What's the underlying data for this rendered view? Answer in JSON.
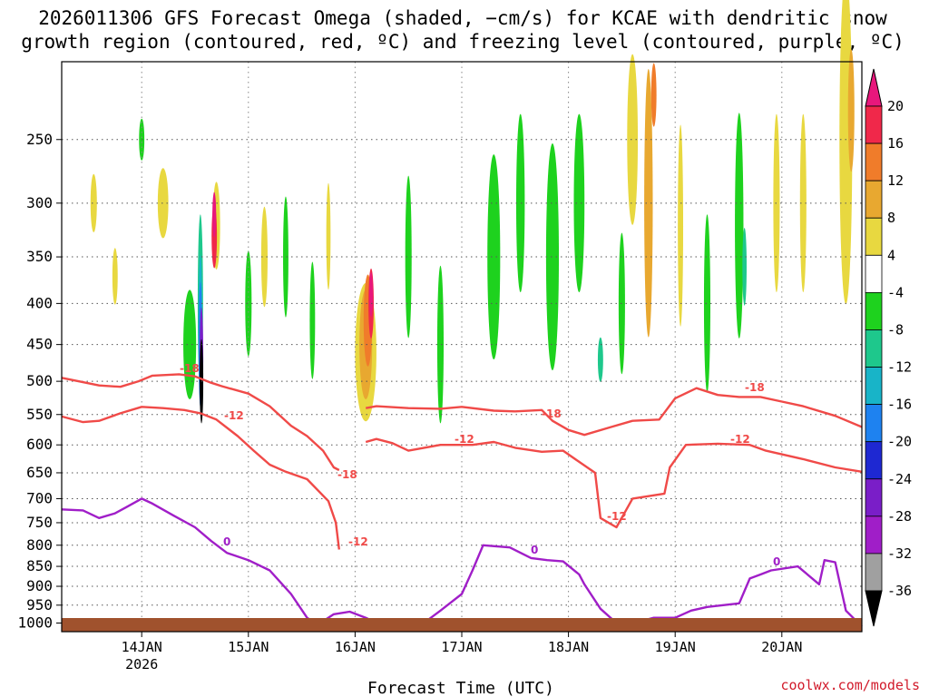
{
  "chart_data": {
    "type": "heatmap",
    "title_lines": [
      "2026011306 GFS Forecast Omega (shaded, −cm/s) for KCAE with dendritic snow",
      "growth region (contoured, red, ºC) and freezing level (contoured, purple, ºC)"
    ],
    "xlabel": "Forecast Time (UTC)",
    "credit": "coolwx.com/models",
    "x_ticks": [
      {
        "label": "14JAN",
        "sub": "2026",
        "day": 14
      },
      {
        "label": "15JAN",
        "sub": "",
        "day": 15
      },
      {
        "label": "16JAN",
        "sub": "",
        "day": 16
      },
      {
        "label": "17JAN",
        "sub": "",
        "day": 17
      },
      {
        "label": "18JAN",
        "sub": "",
        "day": 18
      },
      {
        "label": "19JAN",
        "sub": "",
        "day": 19
      },
      {
        "label": "20JAN",
        "sub": "",
        "day": 20
      }
    ],
    "x_range_days": [
      13.25,
      20.75
    ],
    "y_axis": "pressure (hPa)",
    "y_range_hpa": [
      200,
      1025
    ],
    "y_ticks": [
      250,
      300,
      350,
      400,
      450,
      500,
      550,
      600,
      650,
      700,
      750,
      800,
      850,
      900,
      950,
      1000
    ],
    "colorbar": {
      "ticks": [
        "20",
        "16",
        "12",
        "8",
        "4",
        "-4",
        "-8",
        "-12",
        "-16",
        "-20",
        "-24",
        "-28",
        "-32",
        "-36"
      ],
      "bins": [
        {
          "range": "> 20",
          "color": "#e8177c"
        },
        {
          "range": "16 to 20",
          "color": "#f0284a"
        },
        {
          "range": "12 to 16",
          "color": "#f07c2a"
        },
        {
          "range": "8 to 12",
          "color": "#e8a830"
        },
        {
          "range": "4 to 8",
          "color": "#e8d840"
        },
        {
          "range": "-4 to 4",
          "color": "#ffffff"
        },
        {
          "range": "-8 to -4",
          "color": "#1ed21e"
        },
        {
          "range": "-12 to -8",
          "color": "#1ec88c"
        },
        {
          "range": "-16 to -12",
          "color": "#18b4c8"
        },
        {
          "range": "-20 to -16",
          "color": "#1e82f0"
        },
        {
          "range": "-24 to -20",
          "color": "#1e28d2"
        },
        {
          "range": "-28 to -24",
          "color": "#7a1ec8"
        },
        {
          "range": "-32 to -28",
          "color": "#a01ec8"
        },
        {
          "range": "-36 to -32",
          "color": "#a0a0a0"
        },
        {
          "range": "< -36",
          "color": "#000000"
        }
      ]
    },
    "ground_color": "#a0522d",
    "dgz_color": "#f04a48",
    "freezing_color": "#a01ec8",
    "contour_labels": {
      "minus18": "-18",
      "minus12": "-12",
      "zero": "0"
    },
    "contours": {
      "minus18_top": [
        [
          13.25,
          495
        ],
        [
          13.6,
          506
        ],
        [
          13.8,
          508
        ],
        [
          13.97,
          500
        ],
        [
          14.1,
          492
        ],
        [
          14.35,
          490
        ],
        [
          14.5,
          493
        ],
        [
          14.65,
          502
        ],
        [
          14.75,
          507
        ],
        [
          15.0,
          518
        ],
        [
          15.2,
          537
        ],
        [
          15.4,
          568
        ],
        [
          15.55,
          585
        ],
        [
          15.7,
          610
        ],
        [
          15.8,
          640
        ],
        [
          15.85,
          645
        ]
      ],
      "minus12_top": [
        [
          13.25,
          553
        ],
        [
          13.45,
          562
        ],
        [
          13.6,
          560
        ],
        [
          13.8,
          548
        ],
        [
          14.0,
          538
        ],
        [
          14.2,
          540
        ],
        [
          14.4,
          543
        ],
        [
          14.55,
          548
        ],
        [
          14.7,
          558
        ],
        [
          14.9,
          585
        ],
        [
          15.05,
          610
        ],
        [
          15.2,
          635
        ],
        [
          15.35,
          648
        ],
        [
          15.55,
          662
        ],
        [
          15.75,
          705
        ],
        [
          15.82,
          750
        ],
        [
          15.85,
          810
        ]
      ],
      "minus18_right": [
        [
          16.1,
          540
        ],
        [
          16.2,
          537
        ],
        [
          16.5,
          540
        ],
        [
          16.8,
          541
        ],
        [
          17.0,
          538
        ],
        [
          17.3,
          544
        ],
        [
          17.5,
          545
        ],
        [
          17.75,
          543
        ],
        [
          17.85,
          560
        ],
        [
          18.0,
          575
        ],
        [
          18.15,
          583
        ],
        [
          18.4,
          570
        ],
        [
          18.6,
          560
        ],
        [
          18.85,
          558
        ],
        [
          19.0,
          525
        ],
        [
          19.2,
          510
        ],
        [
          19.4,
          520
        ],
        [
          19.6,
          523
        ],
        [
          19.8,
          523
        ],
        [
          20.0,
          530
        ],
        [
          20.2,
          537
        ],
        [
          20.5,
          552
        ],
        [
          20.75,
          570
        ]
      ],
      "minus12_right": [
        [
          16.1,
          595
        ],
        [
          16.2,
          590
        ],
        [
          16.35,
          597
        ],
        [
          16.5,
          610
        ],
        [
          16.8,
          600
        ],
        [
          17.1,
          600
        ],
        [
          17.3,
          595
        ],
        [
          17.5,
          605
        ],
        [
          17.75,
          612
        ],
        [
          17.95,
          610
        ],
        [
          18.1,
          630
        ],
        [
          18.25,
          650
        ],
        [
          18.3,
          740
        ],
        [
          18.45,
          760
        ],
        [
          18.6,
          700
        ],
        [
          18.9,
          690
        ],
        [
          18.95,
          640
        ],
        [
          19.1,
          600
        ],
        [
          19.4,
          598
        ],
        [
          19.7,
          600
        ],
        [
          19.85,
          610
        ],
        [
          20.2,
          625
        ],
        [
          20.5,
          640
        ],
        [
          20.75,
          648
        ]
      ],
      "freezing_left": [
        [
          13.25,
          722
        ],
        [
          13.45,
          724
        ],
        [
          13.6,
          740
        ],
        [
          13.75,
          730
        ],
        [
          13.85,
          718
        ],
        [
          14.0,
          700
        ],
        [
          14.1,
          710
        ],
        [
          14.3,
          735
        ],
        [
          14.5,
          760
        ],
        [
          14.65,
          790
        ],
        [
          14.8,
          818
        ],
        [
          15.0,
          835
        ],
        [
          15.2,
          860
        ],
        [
          15.4,
          920
        ],
        [
          15.55,
          985
        ],
        [
          15.65,
          1005
        ]
      ],
      "freezing_hump": [
        [
          15.65,
          1005
        ],
        [
          15.8,
          975
        ],
        [
          15.95,
          968
        ],
        [
          16.1,
          985
        ],
        [
          16.2,
          1000
        ]
      ],
      "freezing_mid": [
        [
          16.6,
          1010
        ],
        [
          16.8,
          965
        ],
        [
          17.0,
          920
        ],
        [
          17.1,
          860
        ],
        [
          17.2,
          800
        ],
        [
          17.45,
          805
        ],
        [
          17.65,
          830
        ],
        [
          17.8,
          835
        ],
        [
          17.95,
          838
        ],
        [
          18.1,
          870
        ],
        [
          18.15,
          895
        ],
        [
          18.3,
          960
        ],
        [
          18.45,
          1000
        ]
      ],
      "freezing_right": [
        [
          18.55,
          1005
        ],
        [
          18.8,
          985
        ],
        [
          19.0,
          985
        ],
        [
          19.15,
          965
        ],
        [
          19.3,
          955
        ],
        [
          19.6,
          945
        ],
        [
          19.7,
          880
        ],
        [
          19.8,
          870
        ],
        [
          19.9,
          860
        ],
        [
          20.15,
          850
        ],
        [
          20.35,
          895
        ],
        [
          20.4,
          835
        ],
        [
          20.5,
          840
        ],
        [
          20.6,
          965
        ],
        [
          20.75,
          1010
        ]
      ]
    },
    "omega_blobs": [
      {
        "x": 13.55,
        "p": 300,
        "w": 0.06,
        "h": 50,
        "c": "#e8d840"
      },
      {
        "x": 13.75,
        "p": 370,
        "w": 0.05,
        "h": 60,
        "c": "#e8d840"
      },
      {
        "x": 14.0,
        "p": 250,
        "w": 0.05,
        "h": 30,
        "c": "#1ed21e"
      },
      {
        "x": 14.2,
        "p": 300,
        "w": 0.1,
        "h": 60,
        "c": "#e8d840"
      },
      {
        "x": 14.45,
        "p": 450,
        "w": 0.12,
        "h": 140,
        "c": "#1ed21e"
      },
      {
        "x": 14.55,
        "p": 400,
        "w": 0.05,
        "h": 200,
        "c": "#1ec88c"
      },
      {
        "x": 14.55,
        "p": 430,
        "w": 0.035,
        "h": 180,
        "c": "#18b4c8"
      },
      {
        "x": 14.55,
        "p": 450,
        "w": 0.025,
        "h": 160,
        "c": "#1e82f0"
      },
      {
        "x": 14.56,
        "p": 470,
        "w": 0.018,
        "h": 140,
        "c": "#7a1ec8"
      },
      {
        "x": 14.56,
        "p": 500,
        "w": 0.01,
        "h": 120,
        "c": "#000000"
      },
      {
        "x": 14.7,
        "p": 320,
        "w": 0.07,
        "h": 80,
        "c": "#e8d840"
      },
      {
        "x": 14.68,
        "p": 330,
        "w": 0.05,
        "h": 60,
        "c": "#f0284a"
      },
      {
        "x": 14.68,
        "p": 310,
        "w": 0.035,
        "h": 40,
        "c": "#e8177c"
      },
      {
        "x": 15.0,
        "p": 400,
        "w": 0.06,
        "h": 120,
        "c": "#1ed21e"
      },
      {
        "x": 15.15,
        "p": 350,
        "w": 0.06,
        "h": 100,
        "c": "#e8d840"
      },
      {
        "x": 15.35,
        "p": 350,
        "w": 0.05,
        "h": 120,
        "c": "#1ed21e"
      },
      {
        "x": 15.6,
        "p": 420,
        "w": 0.05,
        "h": 140,
        "c": "#1ed21e"
      },
      {
        "x": 15.75,
        "p": 330,
        "w": 0.04,
        "h": 100,
        "c": "#e8d840"
      },
      {
        "x": 16.1,
        "p": 460,
        "w": 0.2,
        "h": 180,
        "c": "#e8d840"
      },
      {
        "x": 16.1,
        "p": 450,
        "w": 0.12,
        "h": 140,
        "c": "#e8a830"
      },
      {
        "x": 16.12,
        "p": 420,
        "w": 0.08,
        "h": 110,
        "c": "#f07c2a"
      },
      {
        "x": 16.15,
        "p": 400,
        "w": 0.05,
        "h": 80,
        "c": "#f0284a"
      },
      {
        "x": 16.15,
        "p": 390,
        "w": 0.03,
        "h": 50,
        "c": "#e8177c"
      },
      {
        "x": 16.5,
        "p": 350,
        "w": 0.06,
        "h": 160,
        "c": "#1ed21e"
      },
      {
        "x": 16.8,
        "p": 450,
        "w": 0.06,
        "h": 200,
        "c": "#1ed21e"
      },
      {
        "x": 17.3,
        "p": 350,
        "w": 0.12,
        "h": 200,
        "c": "#1ed21e"
      },
      {
        "x": 17.55,
        "p": 300,
        "w": 0.08,
        "h": 150,
        "c": "#1ed21e"
      },
      {
        "x": 17.85,
        "p": 350,
        "w": 0.12,
        "h": 220,
        "c": "#1ed21e"
      },
      {
        "x": 18.1,
        "p": 300,
        "w": 0.1,
        "h": 150,
        "c": "#1ed21e"
      },
      {
        "x": 18.3,
        "p": 470,
        "w": 0.05,
        "h": 60,
        "c": "#1ec88c"
      },
      {
        "x": 18.5,
        "p": 400,
        "w": 0.06,
        "h": 160,
        "c": "#1ed21e"
      },
      {
        "x": 18.6,
        "p": 250,
        "w": 0.1,
        "h": 120,
        "c": "#e8d840"
      },
      {
        "x": 18.75,
        "p": 300,
        "w": 0.08,
        "h": 220,
        "c": "#e8a830"
      },
      {
        "x": 18.8,
        "p": 220,
        "w": 0.05,
        "h": 40,
        "c": "#f07c2a"
      },
      {
        "x": 19.05,
        "p": 320,
        "w": 0.05,
        "h": 180,
        "c": "#e8d840"
      },
      {
        "x": 19.3,
        "p": 400,
        "w": 0.06,
        "h": 200,
        "c": "#1ed21e"
      },
      {
        "x": 19.6,
        "p": 320,
        "w": 0.08,
        "h": 200,
        "c": "#1ed21e"
      },
      {
        "x": 19.65,
        "p": 360,
        "w": 0.04,
        "h": 80,
        "c": "#1ec88c"
      },
      {
        "x": 19.95,
        "p": 300,
        "w": 0.06,
        "h": 150,
        "c": "#e8d840"
      },
      {
        "x": 20.2,
        "p": 300,
        "w": 0.06,
        "h": 150,
        "c": "#e8d840"
      },
      {
        "x": 20.6,
        "p": 250,
        "w": 0.12,
        "h": 220,
        "c": "#e8d840"
      },
      {
        "x": 20.65,
        "p": 230,
        "w": 0.06,
        "h": 80,
        "c": "#e8a830"
      }
    ]
  }
}
